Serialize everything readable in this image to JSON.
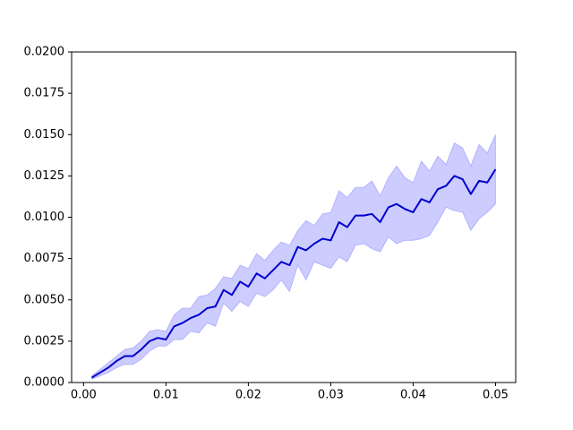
{
  "chart_data": {
    "type": "band-line",
    "x": [
      0.001,
      0.002,
      0.003,
      0.004,
      0.005,
      0.006,
      0.007,
      0.008,
      0.009,
      0.01,
      0.011,
      0.012,
      0.013,
      0.014,
      0.015,
      0.016,
      0.017,
      0.018,
      0.019,
      0.02,
      0.021,
      0.022,
      0.023,
      0.024,
      0.025,
      0.026,
      0.027,
      0.028,
      0.029,
      0.03,
      0.031,
      0.032,
      0.033,
      0.034,
      0.035,
      0.036,
      0.037,
      0.038,
      0.039,
      0.04,
      0.041,
      0.042,
      0.043,
      0.044,
      0.045,
      0.046,
      0.047,
      0.048,
      0.049,
      0.05
    ],
    "series": [
      {
        "color": "#0000cd",
        "band_color": "#0000ff",
        "band_opacity": 0.2,
        "values": [
          0.0003,
          0.0006,
          0.0009,
          0.0013,
          0.0016,
          0.0016,
          0.002,
          0.0025,
          0.0027,
          0.0026,
          0.0034,
          0.0036,
          0.0039,
          0.0041,
          0.0045,
          0.0046,
          0.0056,
          0.0053,
          0.0061,
          0.0058,
          0.0066,
          0.0063,
          0.0068,
          0.0073,
          0.0071,
          0.0082,
          0.008,
          0.0084,
          0.0087,
          0.0086,
          0.0097,
          0.0094,
          0.0101,
          0.0101,
          0.0102,
          0.0097,
          0.0106,
          0.0108,
          0.0105,
          0.0103,
          0.0111,
          0.0109,
          0.0117,
          0.0119,
          0.0125,
          0.0123,
          0.0114,
          0.0122,
          0.0121,
          0.0129
        ],
        "upper": [
          0.0004,
          0.0008,
          0.0012,
          0.0016,
          0.002,
          0.0021,
          0.0025,
          0.0031,
          0.0032,
          0.0031,
          0.0041,
          0.0045,
          0.0045,
          0.0052,
          0.0053,
          0.0057,
          0.0064,
          0.0063,
          0.0071,
          0.0069,
          0.0078,
          0.0074,
          0.008,
          0.0085,
          0.0083,
          0.0092,
          0.0098,
          0.0095,
          0.0102,
          0.0103,
          0.0116,
          0.0112,
          0.0118,
          0.0118,
          0.0122,
          0.0113,
          0.0124,
          0.0131,
          0.0124,
          0.0121,
          0.0134,
          0.0128,
          0.0137,
          0.0132,
          0.0145,
          0.0142,
          0.0131,
          0.0144,
          0.0139,
          0.015
        ],
        "lower": [
          0.0002,
          0.0004,
          0.0006,
          0.0009,
          0.0011,
          0.0011,
          0.0014,
          0.0019,
          0.0022,
          0.0022,
          0.0026,
          0.0026,
          0.0031,
          0.003,
          0.0036,
          0.0034,
          0.0048,
          0.0043,
          0.0049,
          0.0046,
          0.0054,
          0.0052,
          0.0056,
          0.0062,
          0.0055,
          0.0071,
          0.0062,
          0.0073,
          0.0071,
          0.0069,
          0.0076,
          0.0073,
          0.0083,
          0.0084,
          0.0081,
          0.0079,
          0.0088,
          0.0084,
          0.0086,
          0.0086,
          0.0087,
          0.0089,
          0.0097,
          0.0106,
          0.0104,
          0.0103,
          0.0092,
          0.0099,
          0.0103,
          0.0108
        ]
      }
    ],
    "xlim": [
      -0.00145,
      0.05245
    ],
    "xticks": [
      {
        "value": 0,
        "label": "0.00"
      },
      0.01,
      0.02,
      0.03,
      0.04,
      0.05
    ],
    "ylim": [
      0,
      0.02
    ],
    "yticks": [
      {
        "value": 0,
        "label": "0.0000"
      },
      0.0025,
      {
        "value": 0.005,
        "label": "0.0050"
      },
      0.0075,
      {
        "value": 0.01,
        "label": "0.0100"
      },
      0.0125,
      {
        "value": 0.015,
        "label": "0.0150"
      },
      0.0175,
      {
        "value": 0.02,
        "label": "0.0200"
      }
    ],
    "grid": false
  }
}
